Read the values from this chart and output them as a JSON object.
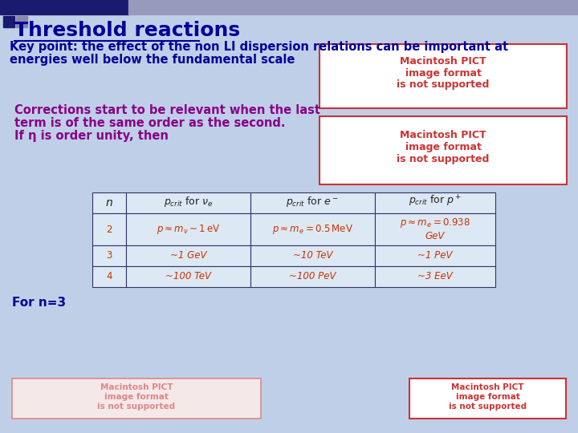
{
  "bg_color": "#c0cfe8",
  "title": "Threshold reactions",
  "title_color": "#000099",
  "title_fontsize": 18,
  "keypoint_text1": "Key point: the effect of the non LI dispersion relations can be important at",
  "keypoint_text2": "energies well below the fundamental scale",
  "keypoint_color": "#000099",
  "keypoint_fontsize": 10.5,
  "correction_line1": "Corrections start to be relevant when the last",
  "correction_line2": "term is of the same order as the second.",
  "correction_line3": "If η is order unity, then",
  "correction_color": "#880088",
  "correction_fontsize": 10.5,
  "pict_color": "#cc3333",
  "pict_text": "Macintosh PICT\nimage format\nis not supported",
  "pict_ghost_color": "#dd8888",
  "footnote": "For n=3",
  "footnote_color": "#000099",
  "footnote_fontsize": 11,
  "table_border_color": "#333366",
  "table_text_color": "#cc3300",
  "table_bg": "#dce8f4",
  "header_text_color": "#333333",
  "bar_color1": "#1a1a6e",
  "bar_color2": "#9999bb",
  "sq_color1": "#1a1a6e",
  "sq_color2": "#8888aa"
}
